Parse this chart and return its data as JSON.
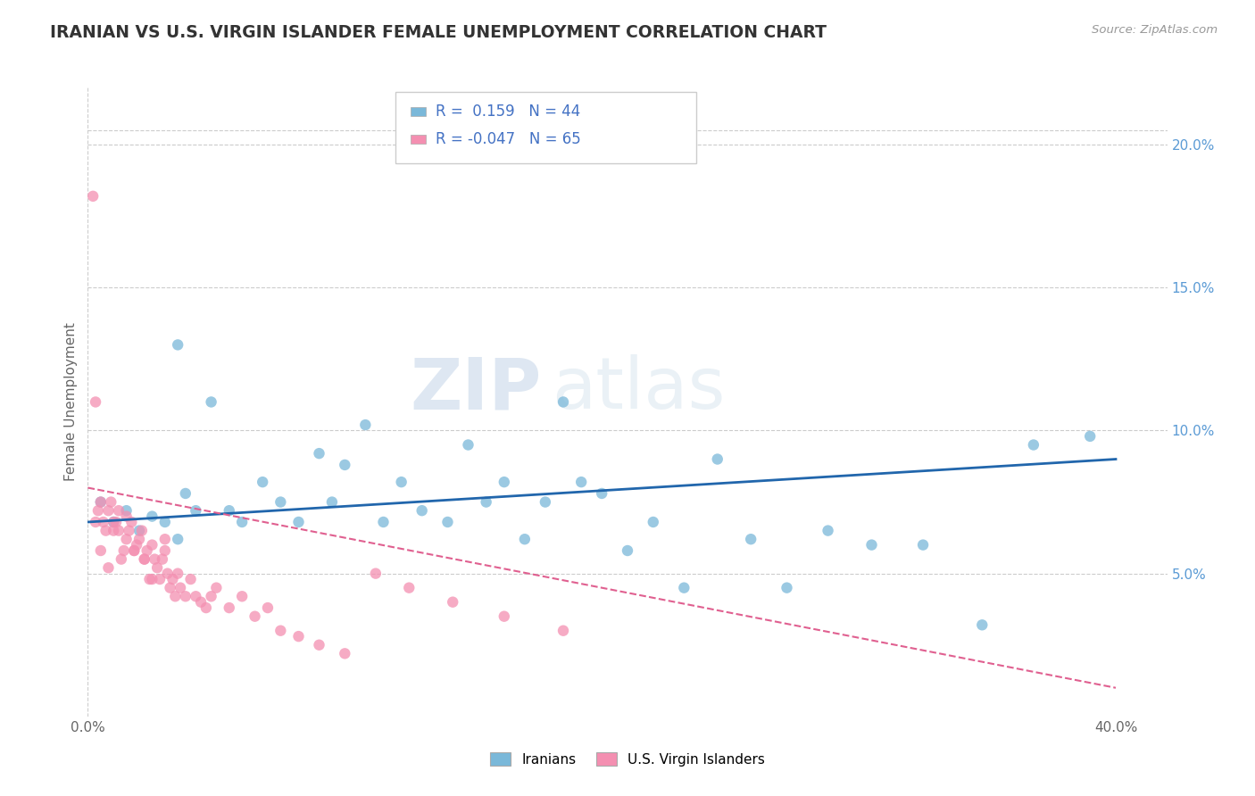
{
  "title": "IRANIAN VS U.S. VIRGIN ISLANDER FEMALE UNEMPLOYMENT CORRELATION CHART",
  "source_text": "Source: ZipAtlas.com",
  "ylabel": "Female Unemployment",
  "r_iranian": 0.159,
  "n_iranian": 44,
  "r_virgin": -0.047,
  "n_virgin": 65,
  "xlim": [
    0.0,
    0.42
  ],
  "ylim": [
    0.0,
    0.22
  ],
  "xticks": [
    0.0,
    0.4
  ],
  "yticks_right": [
    0.05,
    0.1,
    0.15,
    0.2
  ],
  "color_iranian": "#7ab8d9",
  "color_virgin": "#f48fb1",
  "color_line_iranian": "#2166ac",
  "color_line_virgin": "#e06090",
  "watermark_zip": "ZIP",
  "watermark_atlas": "atlas",
  "legend_iranian": "Iranians",
  "legend_virgin": "U.S. Virgin Islanders",
  "iranian_x": [
    0.005,
    0.01,
    0.015,
    0.02,
    0.025,
    0.03,
    0.035,
    0.038,
    0.042,
    0.048,
    0.055,
    0.06,
    0.068,
    0.075,
    0.082,
    0.09,
    0.095,
    0.1,
    0.108,
    0.115,
    0.122,
    0.13,
    0.14,
    0.148,
    0.155,
    0.162,
    0.17,
    0.178,
    0.185,
    0.192,
    0.2,
    0.21,
    0.22,
    0.232,
    0.245,
    0.258,
    0.272,
    0.288,
    0.305,
    0.325,
    0.348,
    0.368,
    0.39,
    0.035
  ],
  "iranian_y": [
    0.075,
    0.068,
    0.072,
    0.065,
    0.07,
    0.068,
    0.062,
    0.078,
    0.072,
    0.11,
    0.072,
    0.068,
    0.082,
    0.075,
    0.068,
    0.092,
    0.075,
    0.088,
    0.102,
    0.068,
    0.082,
    0.072,
    0.068,
    0.095,
    0.075,
    0.082,
    0.062,
    0.075,
    0.11,
    0.082,
    0.078,
    0.058,
    0.068,
    0.045,
    0.09,
    0.062,
    0.045,
    0.065,
    0.06,
    0.06,
    0.032,
    0.095,
    0.098,
    0.13
  ],
  "virgin_x": [
    0.002,
    0.003,
    0.004,
    0.005,
    0.006,
    0.007,
    0.008,
    0.009,
    0.01,
    0.011,
    0.012,
    0.013,
    0.014,
    0.015,
    0.016,
    0.017,
    0.018,
    0.019,
    0.02,
    0.021,
    0.022,
    0.023,
    0.024,
    0.025,
    0.026,
    0.027,
    0.028,
    0.029,
    0.03,
    0.031,
    0.032,
    0.033,
    0.034,
    0.035,
    0.036,
    0.038,
    0.04,
    0.042,
    0.044,
    0.046,
    0.048,
    0.05,
    0.055,
    0.06,
    0.065,
    0.07,
    0.075,
    0.082,
    0.09,
    0.1,
    0.112,
    0.125,
    0.142,
    0.162,
    0.185,
    0.003,
    0.005,
    0.008,
    0.01,
    0.012,
    0.015,
    0.018,
    0.022,
    0.025,
    0.03
  ],
  "virgin_y": [
    0.182,
    0.068,
    0.072,
    0.075,
    0.068,
    0.065,
    0.072,
    0.075,
    0.065,
    0.068,
    0.072,
    0.055,
    0.058,
    0.062,
    0.065,
    0.068,
    0.058,
    0.06,
    0.062,
    0.065,
    0.055,
    0.058,
    0.048,
    0.06,
    0.055,
    0.052,
    0.048,
    0.055,
    0.058,
    0.05,
    0.045,
    0.048,
    0.042,
    0.05,
    0.045,
    0.042,
    0.048,
    0.042,
    0.04,
    0.038,
    0.042,
    0.045,
    0.038,
    0.042,
    0.035,
    0.038,
    0.03,
    0.028,
    0.025,
    0.022,
    0.05,
    0.045,
    0.04,
    0.035,
    0.03,
    0.11,
    0.058,
    0.052,
    0.068,
    0.065,
    0.07,
    0.058,
    0.055,
    0.048,
    0.062
  ],
  "trendline_iranian_start_y": 0.068,
  "trendline_iranian_end_y": 0.09,
  "trendline_virgin_start_y": 0.08,
  "trendline_virgin_end_y": 0.01
}
